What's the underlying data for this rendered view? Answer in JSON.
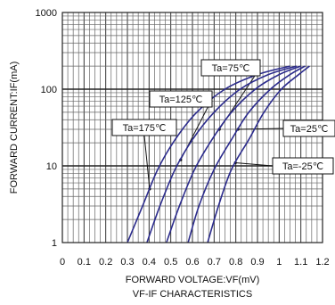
{
  "chart_data": {
    "type": "line",
    "title": "VF-IF CHARACTERISTICS",
    "xlabel": "FORWARD VOLTAGE:VF(mV)",
    "ylabel": "FORWARD CURRENT:IF(mA)",
    "xlim": [
      0,
      1.2
    ],
    "ylim": [
      1,
      1000
    ],
    "yscale": "log",
    "grid": true,
    "line_color": "#2b2b8c",
    "x_ticks": [
      "0",
      "0.1",
      "0.2",
      "0.3",
      "0.4",
      "0.5",
      "0.6",
      "0.7",
      "0.8",
      "0.9",
      "1",
      "1.1",
      "1.2"
    ],
    "y_ticks": [
      "1",
      "10",
      "100",
      "1000"
    ],
    "series": [
      {
        "name": "Ta=175℃",
        "x": [
          0.3,
          0.37,
          0.44,
          0.52,
          0.62,
          0.75,
          0.9,
          1.05
        ],
        "y": [
          1,
          3,
          9,
          22,
          50,
          100,
          155,
          200
        ]
      },
      {
        "name": "Ta=125℃",
        "x": [
          0.39,
          0.45,
          0.52,
          0.6,
          0.7,
          0.82,
          0.95,
          1.08
        ],
        "y": [
          1,
          3,
          9,
          22,
          50,
          100,
          155,
          200
        ]
      },
      {
        "name": "Ta=75℃",
        "x": [
          0.48,
          0.54,
          0.61,
          0.69,
          0.78,
          0.89,
          1.0,
          1.1
        ],
        "y": [
          1,
          3,
          9,
          22,
          50,
          100,
          155,
          200
        ]
      },
      {
        "name": "Ta=25℃",
        "x": [
          0.58,
          0.63,
          0.7,
          0.78,
          0.86,
          0.96,
          1.05,
          1.12
        ],
        "y": [
          1,
          3,
          9,
          22,
          50,
          100,
          155,
          200
        ]
      },
      {
        "name": "Ta=-25℃",
        "x": [
          0.67,
          0.72,
          0.78,
          0.86,
          0.93,
          1.01,
          1.09,
          1.14
        ],
        "y": [
          1,
          3,
          9,
          22,
          50,
          100,
          155,
          200
        ]
      }
    ],
    "annotations": [
      {
        "text": "Ta=75℃",
        "series": "Ta=75℃"
      },
      {
        "text": "Ta=125℃",
        "series": "Ta=125℃"
      },
      {
        "text": "Ta=175℃",
        "series": "Ta=175℃"
      },
      {
        "text": "Ta=25℃",
        "series": "Ta=25℃"
      },
      {
        "text": "Ta=-25℃",
        "series": "Ta=-25℃"
      }
    ]
  }
}
